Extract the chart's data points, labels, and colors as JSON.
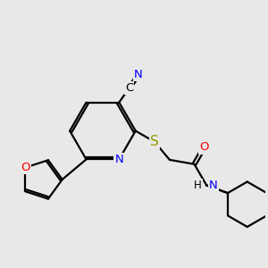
{
  "bg_color": "#e8e8e8",
  "bond_color": "#000000",
  "bond_width": 1.6,
  "atom_colors": {
    "N": "#0000ff",
    "O": "#ff0000",
    "S": "#999900",
    "C": "#000000",
    "H": "#000000"
  },
  "font_size": 9.5
}
